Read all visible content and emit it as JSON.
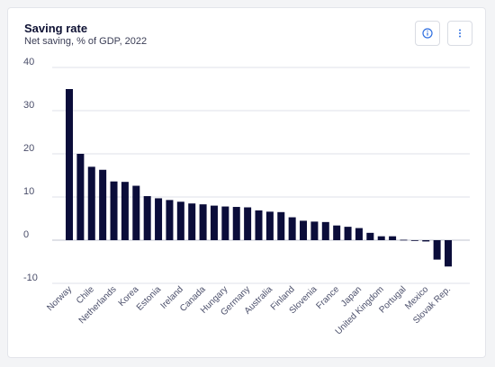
{
  "header": {
    "title": "Saving rate",
    "subtitle": "Net saving, % of GDP, 2022",
    "info_icon": "info-icon",
    "more_icon": "more-vertical-icon"
  },
  "colors": {
    "bar": "#0b0d3a",
    "grid": "#dfe1e8",
    "text": "#4a4e6a",
    "accent": "#2f6fe0"
  },
  "chart_data": {
    "type": "bar",
    "title": "Saving rate",
    "subtitle": "Net saving, % of GDP, 2022",
    "xlabel": "",
    "ylabel": "",
    "ylim": [
      -10,
      40
    ],
    "yticks": [
      40,
      30,
      20,
      10,
      0,
      -10
    ],
    "grid": true,
    "categories": [
      "Norway",
      "",
      "Chile",
      "",
      "Netherlands",
      "",
      "Korea",
      "",
      "Estonia",
      "",
      "Ireland",
      "",
      "Canada",
      "",
      "Hungary",
      "",
      "Germany",
      "",
      "Australia",
      "",
      "Finland",
      "",
      "Slovenia",
      "",
      "France",
      "",
      "Japan",
      "",
      "United Kingdom",
      "",
      "Portugal",
      "",
      "Mexico",
      "",
      "Slovak Rep."
    ],
    "values": [
      35,
      20,
      17,
      16.3,
      13.6,
      13.5,
      12.6,
      10.2,
      9.7,
      9.3,
      8.9,
      8.5,
      8.3,
      8.0,
      7.8,
      7.7,
      7.6,
      6.9,
      6.6,
      6.5,
      5.3,
      4.5,
      4.3,
      4.2,
      3.4,
      3.1,
      2.8,
      1.7,
      0.9,
      0.9,
      0.1,
      -0.1,
      -0.3,
      -4.5,
      -6.1
    ]
  }
}
